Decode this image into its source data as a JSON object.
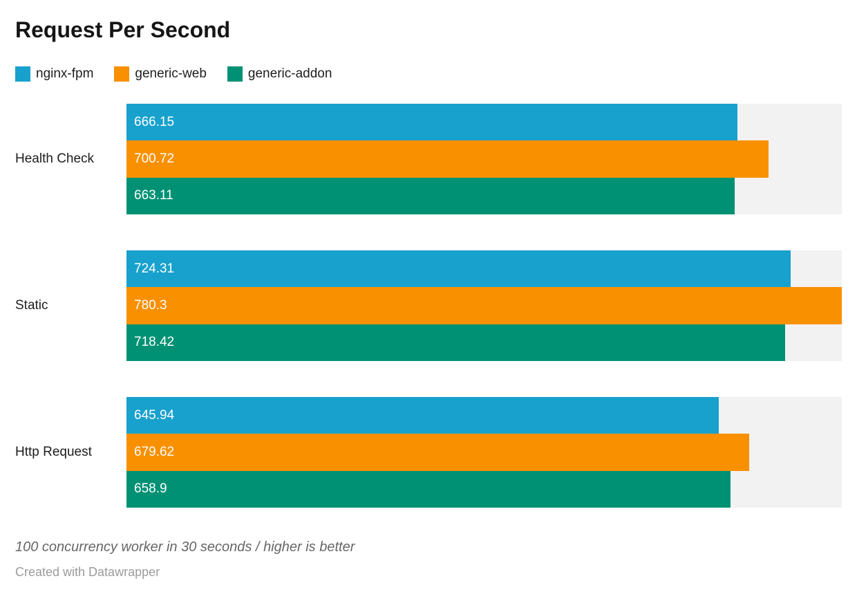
{
  "title": "Request Per Second",
  "colors": {
    "background": "#ffffff",
    "track": "#f2f2f2",
    "title_text": "#151515",
    "label_text": "#1d1d1d",
    "value_text": "#ffffff",
    "note_text": "#666666",
    "attribution_text": "#9b9b9b"
  },
  "chart_data": {
    "type": "bar",
    "orientation": "horizontal",
    "grouped": true,
    "title": "Request Per Second",
    "categories": [
      "Health Check",
      "Static",
      "Http Request"
    ],
    "series": [
      {
        "name": "nginx-fpm",
        "color": "#18a1cd",
        "values": [
          666.15,
          724.31,
          645.94
        ],
        "value_labels": [
          "666.15",
          "724.31",
          "645.94"
        ]
      },
      {
        "name": "generic-web",
        "color": "#f89000",
        "values": [
          700.72,
          780.3,
          679.62
        ],
        "value_labels": [
          "700.72",
          "780.3",
          "679.62"
        ]
      },
      {
        "name": "generic-addon",
        "color": "#009174",
        "values": [
          663.11,
          718.42,
          658.9
        ],
        "value_labels": [
          "663.11",
          "718.42",
          "658.9"
        ]
      }
    ],
    "xlim": [
      0,
      780.3
    ],
    "value_labels_inside_bars": true,
    "grid": false,
    "legend_position": "top-left",
    "track_color": "#f2f2f2"
  },
  "footer": {
    "note": "100 concurrency worker in 30 seconds / higher is better",
    "attribution": "Created with Datawrapper"
  }
}
